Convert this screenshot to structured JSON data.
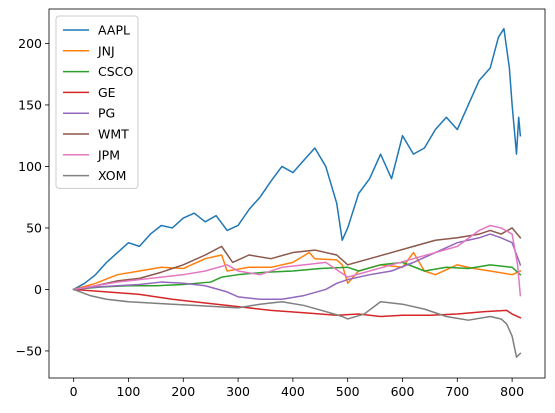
{
  "chart_data": {
    "type": "line",
    "title": "",
    "xlabel": "",
    "ylabel": "",
    "xlim": [
      -45,
      860
    ],
    "ylim": [
      -72,
      228
    ],
    "xticks": [
      0,
      100,
      200,
      300,
      400,
      500,
      600,
      700,
      800
    ],
    "yticks": [
      -50,
      0,
      50,
      100,
      150,
      200
    ],
    "grid": false,
    "legend_position": "top-left",
    "series": [
      {
        "name": "AAPL",
        "color": "#1f77b4",
        "points": [
          [
            0,
            0
          ],
          [
            20,
            5
          ],
          [
            40,
            12
          ],
          [
            60,
            22
          ],
          [
            80,
            30
          ],
          [
            100,
            38
          ],
          [
            120,
            35
          ],
          [
            140,
            45
          ],
          [
            160,
            52
          ],
          [
            180,
            50
          ],
          [
            200,
            58
          ],
          [
            220,
            62
          ],
          [
            240,
            55
          ],
          [
            260,
            60
          ],
          [
            280,
            48
          ],
          [
            300,
            52
          ],
          [
            320,
            65
          ],
          [
            340,
            75
          ],
          [
            360,
            88
          ],
          [
            380,
            100
          ],
          [
            400,
            95
          ],
          [
            420,
            105
          ],
          [
            440,
            115
          ],
          [
            460,
            100
          ],
          [
            480,
            70
          ],
          [
            490,
            40
          ],
          [
            500,
            50
          ],
          [
            520,
            78
          ],
          [
            540,
            90
          ],
          [
            560,
            110
          ],
          [
            580,
            90
          ],
          [
            600,
            125
          ],
          [
            620,
            110
          ],
          [
            640,
            115
          ],
          [
            660,
            130
          ],
          [
            680,
            140
          ],
          [
            700,
            130
          ],
          [
            720,
            150
          ],
          [
            740,
            170
          ],
          [
            760,
            180
          ],
          [
            775,
            205
          ],
          [
            785,
            212
          ],
          [
            795,
            180
          ],
          [
            800,
            150
          ],
          [
            808,
            110
          ],
          [
            812,
            140
          ],
          [
            815,
            125
          ]
        ]
      },
      {
        "name": "JNJ",
        "color": "#ff7f0e",
        "points": [
          [
            0,
            0
          ],
          [
            40,
            5
          ],
          [
            80,
            12
          ],
          [
            120,
            15
          ],
          [
            160,
            18
          ],
          [
            200,
            17
          ],
          [
            240,
            25
          ],
          [
            270,
            28
          ],
          [
            280,
            15
          ],
          [
            320,
            18
          ],
          [
            360,
            18
          ],
          [
            400,
            22
          ],
          [
            430,
            30
          ],
          [
            440,
            25
          ],
          [
            480,
            24
          ],
          [
            490,
            20
          ],
          [
            500,
            5
          ],
          [
            520,
            15
          ],
          [
            560,
            20
          ],
          [
            600,
            18
          ],
          [
            620,
            30
          ],
          [
            640,
            15
          ],
          [
            660,
            12
          ],
          [
            700,
            20
          ],
          [
            730,
            17
          ],
          [
            760,
            15
          ],
          [
            800,
            12
          ],
          [
            815,
            15
          ]
        ]
      },
      {
        "name": "CSCO",
        "color": "#2ca02c",
        "points": [
          [
            0,
            0
          ],
          [
            50,
            2
          ],
          [
            100,
            3
          ],
          [
            150,
            3
          ],
          [
            200,
            4
          ],
          [
            250,
            6
          ],
          [
            270,
            10
          ],
          [
            300,
            12
          ],
          [
            350,
            14
          ],
          [
            400,
            15
          ],
          [
            450,
            17
          ],
          [
            500,
            18
          ],
          [
            520,
            15
          ],
          [
            560,
            20
          ],
          [
            600,
            22
          ],
          [
            640,
            15
          ],
          [
            680,
            18
          ],
          [
            720,
            17
          ],
          [
            760,
            20
          ],
          [
            800,
            18
          ],
          [
            815,
            12
          ]
        ]
      },
      {
        "name": "GE",
        "color": "#d62728",
        "points": [
          [
            0,
            0
          ],
          [
            60,
            -2
          ],
          [
            120,
            -4
          ],
          [
            180,
            -8
          ],
          [
            240,
            -11
          ],
          [
            300,
            -14
          ],
          [
            360,
            -17
          ],
          [
            420,
            -19
          ],
          [
            480,
            -21
          ],
          [
            520,
            -20
          ],
          [
            560,
            -22
          ],
          [
            600,
            -21
          ],
          [
            650,
            -21
          ],
          [
            700,
            -20
          ],
          [
            750,
            -18
          ],
          [
            790,
            -17
          ],
          [
            800,
            -20
          ],
          [
            815,
            -23
          ]
        ]
      },
      {
        "name": "PG",
        "color": "#9467bd",
        "points": [
          [
            0,
            0
          ],
          [
            40,
            2
          ],
          [
            80,
            3
          ],
          [
            120,
            4
          ],
          [
            160,
            6
          ],
          [
            200,
            5
          ],
          [
            240,
            3
          ],
          [
            280,
            -2
          ],
          [
            300,
            -6
          ],
          [
            340,
            -8
          ],
          [
            380,
            -8
          ],
          [
            420,
            -5
          ],
          [
            460,
            0
          ],
          [
            480,
            5
          ],
          [
            500,
            8
          ],
          [
            540,
            12
          ],
          [
            580,
            15
          ],
          [
            620,
            22
          ],
          [
            660,
            30
          ],
          [
            700,
            38
          ],
          [
            740,
            42
          ],
          [
            760,
            45
          ],
          [
            780,
            42
          ],
          [
            800,
            38
          ],
          [
            815,
            20
          ]
        ]
      },
      {
        "name": "WMT",
        "color": "#8c564b",
        "points": [
          [
            0,
            0
          ],
          [
            40,
            3
          ],
          [
            80,
            7
          ],
          [
            120,
            9
          ],
          [
            160,
            14
          ],
          [
            200,
            20
          ],
          [
            240,
            28
          ],
          [
            270,
            35
          ],
          [
            290,
            22
          ],
          [
            320,
            28
          ],
          [
            360,
            25
          ],
          [
            400,
            30
          ],
          [
            440,
            32
          ],
          [
            480,
            28
          ],
          [
            500,
            20
          ],
          [
            540,
            25
          ],
          [
            580,
            30
          ],
          [
            620,
            35
          ],
          [
            660,
            40
          ],
          [
            700,
            42
          ],
          [
            740,
            45
          ],
          [
            760,
            48
          ],
          [
            780,
            45
          ],
          [
            800,
            50
          ],
          [
            815,
            42
          ]
        ]
      },
      {
        "name": "JPM",
        "color": "#e377c2",
        "points": [
          [
            0,
            0
          ],
          [
            40,
            3
          ],
          [
            80,
            6
          ],
          [
            120,
            8
          ],
          [
            160,
            10
          ],
          [
            200,
            12
          ],
          [
            240,
            15
          ],
          [
            280,
            20
          ],
          [
            300,
            15
          ],
          [
            340,
            12
          ],
          [
            380,
            18
          ],
          [
            420,
            20
          ],
          [
            460,
            22
          ],
          [
            500,
            10
          ],
          [
            540,
            15
          ],
          [
            580,
            20
          ],
          [
            620,
            25
          ],
          [
            660,
            30
          ],
          [
            700,
            35
          ],
          [
            740,
            48
          ],
          [
            760,
            52
          ],
          [
            780,
            50
          ],
          [
            800,
            45
          ],
          [
            810,
            20
          ],
          [
            815,
            -5
          ]
        ]
      },
      {
        "name": "XOM",
        "color": "#7f7f7f",
        "points": [
          [
            0,
            0
          ],
          [
            30,
            -5
          ],
          [
            60,
            -8
          ],
          [
            100,
            -10
          ],
          [
            140,
            -11
          ],
          [
            180,
            -12
          ],
          [
            220,
            -13
          ],
          [
            260,
            -14
          ],
          [
            300,
            -15
          ],
          [
            340,
            -12
          ],
          [
            380,
            -10
          ],
          [
            420,
            -13
          ],
          [
            460,
            -18
          ],
          [
            490,
            -22
          ],
          [
            500,
            -24
          ],
          [
            530,
            -20
          ],
          [
            560,
            -10
          ],
          [
            600,
            -12
          ],
          [
            640,
            -16
          ],
          [
            680,
            -22
          ],
          [
            720,
            -25
          ],
          [
            760,
            -22
          ],
          [
            780,
            -24
          ],
          [
            790,
            -28
          ],
          [
            800,
            -38
          ],
          [
            808,
            -55
          ],
          [
            815,
            -52
          ]
        ]
      }
    ]
  }
}
